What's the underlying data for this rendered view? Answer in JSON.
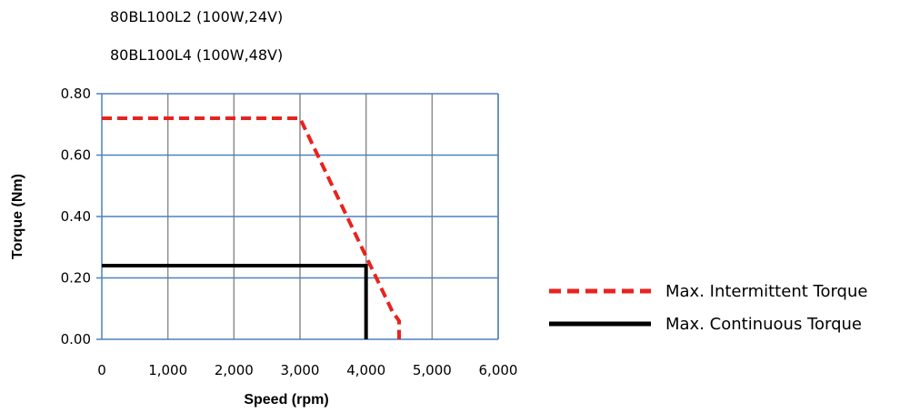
{
  "header": {
    "line1": "80BL100L2 (100W,24V)",
    "line2": "80BL100L4 (100W,48V)"
  },
  "chart_data": {
    "type": "line",
    "xlabel": "Speed (rpm)",
    "ylabel": "Torque (Nm)",
    "xlim": [
      0,
      6000
    ],
    "ylim": [
      0,
      0.8
    ],
    "x_ticks": [
      "0",
      "1,000",
      "2,000",
      "3,000",
      "4,000",
      "5,000",
      "6,000"
    ],
    "y_ticks": [
      "0.00",
      "0.20",
      "0.40",
      "0.60",
      "0.80"
    ],
    "x_tick_values": [
      0,
      1000,
      2000,
      3000,
      4000,
      5000,
      6000
    ],
    "y_tick_values": [
      0,
      0.2,
      0.4,
      0.6,
      0.8
    ],
    "grid": true,
    "legend_position": "right",
    "series": [
      {
        "name": "Max. Intermittent Torque",
        "style": "dashed",
        "color": "#e8231f",
        "x": [
          0,
          3000,
          4400,
          4500,
          4500
        ],
        "y": [
          0.72,
          0.72,
          0.09,
          0.06,
          0
        ]
      },
      {
        "name": "Max. Continuous  Torque",
        "style": "solid",
        "color": "#000000",
        "x": [
          0,
          4000,
          4000
        ],
        "y": [
          0.24,
          0.24,
          0
        ]
      }
    ],
    "gridColor": "#4f81bd",
    "vGridColor": "#8c8c8c"
  }
}
